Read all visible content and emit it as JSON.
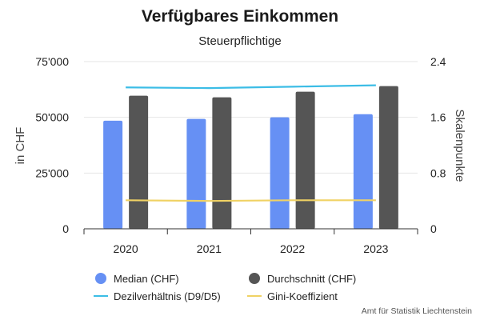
{
  "chart_data": {
    "type": "bar",
    "title": "Verfügbares Einkommen",
    "subtitle": "Steuerpflichtige",
    "categories": [
      "2020",
      "2021",
      "2022",
      "2023"
    ],
    "series": [
      {
        "name": "Median (CHF)",
        "type": "bar",
        "axis": "left",
        "color": "#6690f4",
        "values": [
          48500,
          49300,
          50000,
          51400
        ]
      },
      {
        "name": "Durchschnitt (CHF)",
        "type": "bar",
        "axis": "left",
        "color": "#555555",
        "values": [
          59700,
          59000,
          61500,
          64000
        ]
      },
      {
        "name": "Dezilverhältnis (D9/D5)",
        "type": "line",
        "axis": "right",
        "color": "#3cbde6",
        "values": [
          2.03,
          2.02,
          2.04,
          2.06
        ]
      },
      {
        "name": "Gini-Koeffizient",
        "type": "line",
        "axis": "right",
        "color": "#f0d264",
        "values": [
          0.41,
          0.4,
          0.41,
          0.41
        ]
      }
    ],
    "y_left": {
      "label": "in CHF",
      "min": 0,
      "max": 75000,
      "ticks": [
        "0",
        "25'000",
        "50'000",
        "75'000"
      ]
    },
    "y_right": {
      "label": "Skalenpunkte",
      "min": 0,
      "max": 2.4,
      "ticks": [
        "0",
        "0.8",
        "1.6",
        "2.4"
      ]
    },
    "grid": true,
    "legend_position": "bottom-left"
  },
  "credit": "Amt für Statistik Liechtenstein"
}
